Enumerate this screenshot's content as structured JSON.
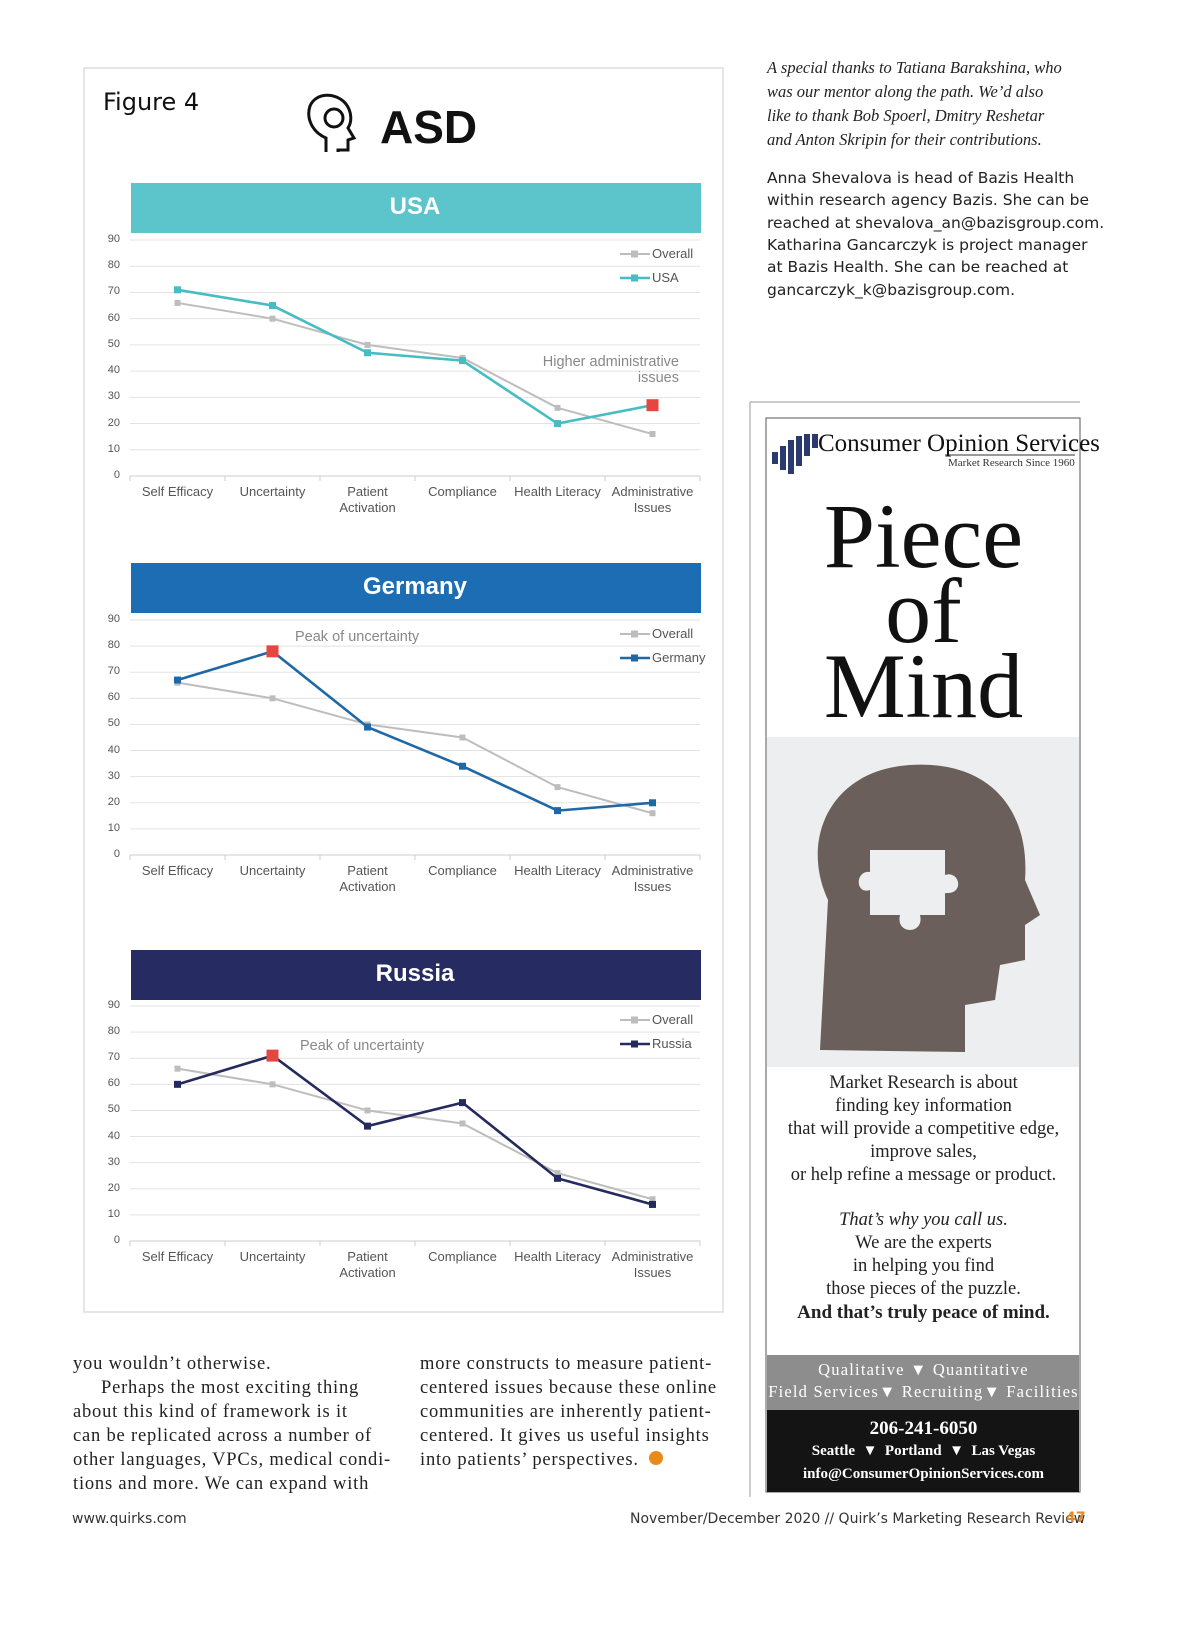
{
  "figure": {
    "label": "Figure 4",
    "title": "ASD"
  },
  "chart_data": [
    {
      "type": "line",
      "title": "USA",
      "header_color": "#5bc5cb",
      "categories": [
        "Self Efficacy",
        "Uncertainty",
        "Patient Activation",
        "Compliance",
        "Health Literacy",
        "Administrative Issues"
      ],
      "series": [
        {
          "name": "Overall",
          "color": "#bdbdbd",
          "values": [
            66,
            60,
            50,
            45,
            26,
            16
          ]
        },
        {
          "name": "USA",
          "color": "#45bdc3",
          "values": [
            71,
            65,
            47,
            44,
            20,
            27
          ],
          "highlight": {
            "index": 5,
            "color": "#e5463f"
          }
        }
      ],
      "annotation": "Higher administrative issues",
      "ylim": [
        0,
        90
      ],
      "yticks": [
        0,
        10,
        20,
        30,
        40,
        50,
        60,
        70,
        80,
        90
      ],
      "grid": true
    },
    {
      "type": "line",
      "title": "Germany",
      "header_color": "#1c6db3",
      "categories": [
        "Self Efficacy",
        "Uncertainty",
        "Patient Activation",
        "Compliance",
        "Health Literacy",
        "Administrative Issues"
      ],
      "series": [
        {
          "name": "Overall",
          "color": "#bdbdbd",
          "values": [
            66,
            60,
            50,
            45,
            26,
            16
          ]
        },
        {
          "name": "Germany",
          "color": "#1f68a6",
          "values": [
            67,
            78,
            49,
            34,
            17,
            20
          ],
          "highlight": {
            "index": 1,
            "color": "#e5463f"
          }
        }
      ],
      "annotation": "Peak of uncertainty",
      "ylim": [
        0,
        90
      ],
      "yticks": [
        0,
        10,
        20,
        30,
        40,
        50,
        60,
        70,
        80,
        90
      ],
      "grid": true
    },
    {
      "type": "line",
      "title": "Russia",
      "header_color": "#262b62",
      "categories": [
        "Self Efficacy",
        "Uncertainty",
        "Patient Activation",
        "Compliance",
        "Health Literacy",
        "Administrative Issues"
      ],
      "series": [
        {
          "name": "Overall",
          "color": "#bdbdbd",
          "values": [
            66,
            60,
            50,
            45,
            26,
            16
          ]
        },
        {
          "name": "Russia",
          "color": "#252a5e",
          "values": [
            60,
            71,
            44,
            53,
            24,
            14
          ],
          "highlight": {
            "index": 1,
            "color": "#e5463f"
          }
        }
      ],
      "annotation": "Peak of uncertainty",
      "ylim": [
        0,
        90
      ],
      "yticks": [
        0,
        10,
        20,
        30,
        40,
        50,
        60,
        70,
        80,
        90
      ],
      "grid": true
    }
  ],
  "sidebar": {
    "thanks": [
      "A special thanks to Tatiana Barakshina, who",
      "was our mentor along the path. We’d also",
      "like to thank Bob Spoerl, Dmitry Reshetar",
      "and Anton Skripin for their contributions."
    ],
    "bio": [
      "Anna Shevalova is head of Bazis Health",
      "within research agency Bazis. She can be",
      "reached at shevalova_an@bazisgroup.com.",
      "Katharina Gancarczyk is project manager",
      "at Bazis Health. She can be reached at",
      "gancarczyk_k@bazisgroup.com."
    ]
  },
  "ad": {
    "brand": "Consumer Opinion Services",
    "tagline": "Market Research Since 1960",
    "headline": [
      "Piece",
      "of",
      "Mind"
    ],
    "body": [
      "Market Research is about",
      "finding key information",
      "that will provide a competitive edge,",
      "improve sales,",
      "or help refine a message or product."
    ],
    "body2": [
      "That’s why you call us.",
      "We are the experts",
      "in helping you find",
      "those pieces of the puzzle.",
      "And that’s truly peace of mind."
    ],
    "services": [
      "Qualitative ▼ Quantitative",
      "Field Services▼ Recruiting▼ Facilities"
    ],
    "phone": "206-241-6050",
    "cities": "Seattle  ▼  Portland  ▼  Las Vegas",
    "email": "info@ConsumerOpinionServices.com"
  },
  "body": {
    "left": [
      "you wouldn’t otherwise.",
      "Perhaps the most exciting thing",
      "about this kind of framework is it",
      "can be replicated across a number of",
      "other languages, VPCs, medical condi-",
      "tions and more. We can expand with"
    ],
    "right": [
      "more constructs to measure patient-",
      "centered issues because these online",
      "communities are inherently patient-",
      "centered. It gives us useful insights",
      "into patients’ perspectives."
    ]
  },
  "footer": {
    "url": "www.quirks.com",
    "issue": "November/December 2020 // Quirk’s Marketing Research Review",
    "page": "47"
  }
}
